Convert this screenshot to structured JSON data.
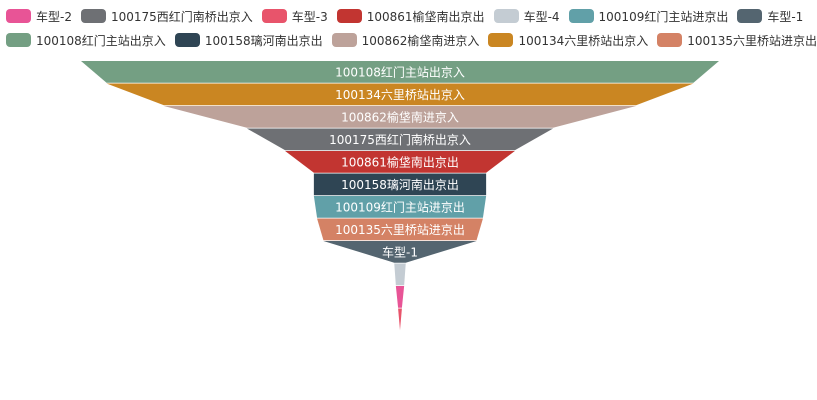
{
  "chart_data": {
    "type": "funnel",
    "legend": {
      "placement": "top",
      "rows": [
        [
          {
            "name": "车型-2",
            "color": "#e85496"
          },
          {
            "name": "100175西红门南桥出京入",
            "color": "#6e7074"
          },
          {
            "name": "车型-3",
            "color": "#e8546b"
          },
          {
            "name": "100861榆垡南出京出",
            "color": "#c23531"
          },
          {
            "name": "车型-4",
            "color": "#c4ccd3"
          },
          {
            "name": "100109红门主站进京出",
            "color": "#61a0a8"
          },
          {
            "name": "车型-1",
            "color": "#546570"
          }
        ],
        [
          {
            "name": "100108红门主站出京入",
            "color": "#749f83"
          },
          {
            "name": "100158璃河南出京出",
            "color": "#2f4554"
          },
          {
            "name": "100862榆垡南进京入",
            "color": "#bda29a"
          },
          {
            "name": "100134六里桥站出京入",
            "color": "#ca8622"
          },
          {
            "name": "100135六里桥站进京出",
            "color": "#d48265"
          }
        ]
      ]
    },
    "max_value": 100,
    "segments": [
      {
        "label": "100108红门主站出京入",
        "value": 100,
        "color": "#749f83"
      },
      {
        "label": "100134六里桥站出京入",
        "value": 92,
        "color": "#ca8622"
      },
      {
        "label": "100862榆垡南进京入",
        "value": 74,
        "color": "#bda29a"
      },
      {
        "label": "100175西红门南桥出京入",
        "value": 48,
        "color": "#6e7074"
      },
      {
        "label": "100861榆垡南出京出",
        "value": 36,
        "color": "#c23531"
      },
      {
        "label": "100158璃河南出京出",
        "value": 27,
        "color": "#2f4554"
      },
      {
        "label": "100109红门主站进京出",
        "value": 27,
        "color": "#61a0a8"
      },
      {
        "label": "100135六里桥站进京出",
        "value": 26,
        "color": "#d48265"
      },
      {
        "label": "车型-1",
        "value": 24,
        "color": "#546570"
      },
      {
        "label": "车型-4",
        "value": 1.8,
        "color": "#c4ccd3",
        "show_label": false
      },
      {
        "label": "车型-2",
        "value": 1.3,
        "color": "#e85496",
        "show_label": false
      },
      {
        "label": "车型-3",
        "value": 0.6,
        "color": "#e8546b",
        "show_label": false
      }
    ]
  }
}
